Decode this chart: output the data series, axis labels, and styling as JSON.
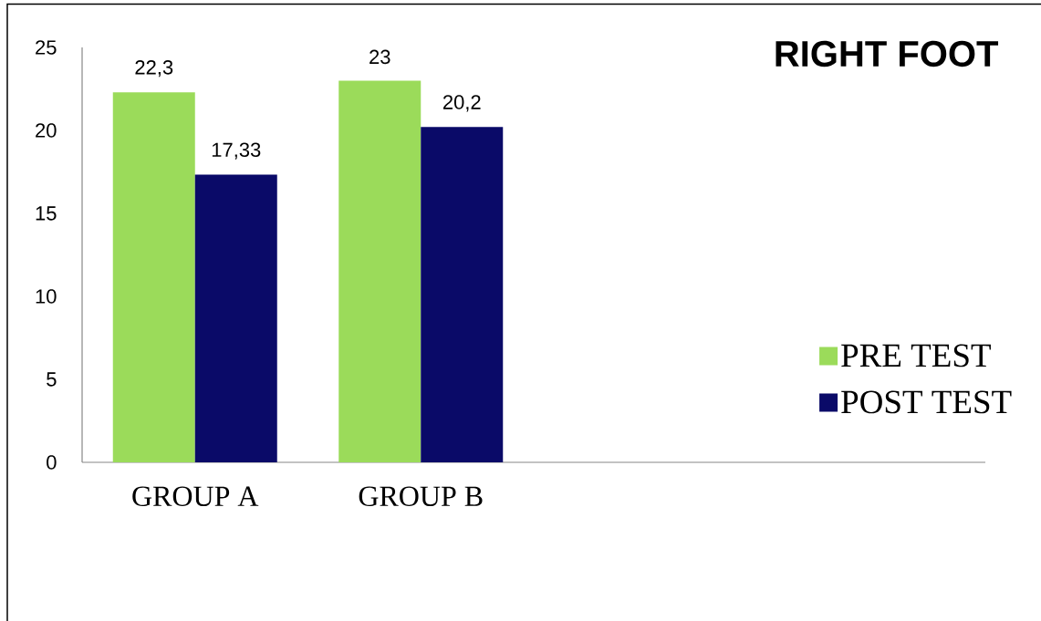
{
  "chart_data": {
    "type": "bar",
    "title": "RIGHT FOOT",
    "categories": [
      "GROUP A",
      "GROUP B",
      null,
      null
    ],
    "series": [
      {
        "name": "PRE TEST",
        "color": "#9bdb5a",
        "values": [
          22.3,
          23,
          null,
          null
        ],
        "value_labels": [
          "22,3",
          "23",
          null,
          null
        ]
      },
      {
        "name": "POST TEST",
        "color": "#0a0a68",
        "values": [
          17.33,
          20.2,
          null,
          null
        ],
        "value_labels": [
          "17,33",
          "20,2",
          null,
          null
        ]
      }
    ],
    "ylim": [
      0,
      25
    ],
    "yticks": [
      0,
      5,
      10,
      15,
      20,
      25
    ],
    "legend": "right"
  }
}
